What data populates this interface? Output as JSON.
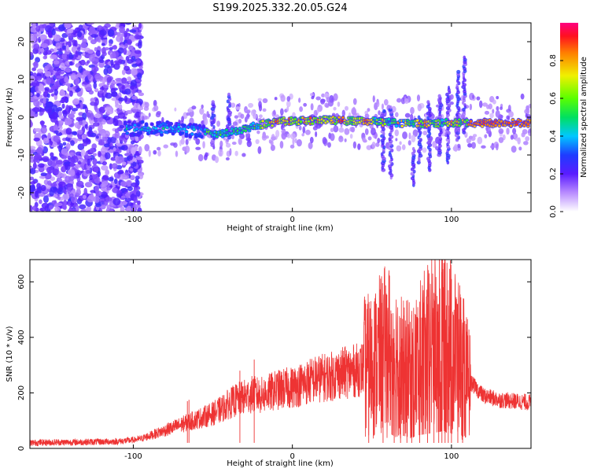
{
  "chart_data": [
    {
      "type": "heatmap",
      "title": "S199.2025.332.20.05.G24",
      "xlabel": "Height of straight line (km)",
      "ylabel": "Frequency (Hz)",
      "xlim": [
        -165,
        150
      ],
      "ylim": [
        -25,
        25
      ],
      "x_ticks": [
        -100,
        0,
        100
      ],
      "y_ticks": [
        -20,
        -10,
        0,
        10,
        20
      ],
      "colorbar": {
        "label": "Normalized spectral amplitude",
        "range": [
          0,
          1
        ],
        "ticks": [
          0.0,
          0.2,
          0.4,
          0.6,
          0.8
        ]
      },
      "ridge": {
        "x": [
          -105,
          -95,
          -85,
          -75,
          -65,
          -55,
          -45,
          -35,
          -25,
          -15,
          -5,
          5,
          15,
          25,
          35,
          45,
          55,
          65,
          75,
          85,
          95,
          105,
          115,
          125,
          135,
          150
        ],
        "y": [
          -3,
          -3,
          -3,
          -3,
          -3.5,
          -4,
          -4.5,
          -3.5,
          -2.5,
          -1.5,
          -1,
          -1,
          -0.8,
          -0.8,
          -1,
          -1,
          -1.2,
          -1.5,
          -1.5,
          -1.8,
          -1.5,
          -1.5,
          -1.5,
          -1.5,
          -1.5,
          -1.5
        ]
      }
    },
    {
      "type": "line",
      "xlabel": "Height of straight line (km)",
      "ylabel": "SNR (10 * v/v)",
      "xlim": [
        -165,
        150
      ],
      "ylim": [
        0,
        680
      ],
      "x_ticks": [
        -100,
        0,
        100
      ],
      "y_ticks": [
        0,
        200,
        400,
        600
      ],
      "series": [
        {
          "name": "SNR",
          "color": "#ee3333",
          "x": [
            -165,
            -150,
            -140,
            -130,
            -120,
            -110,
            -100,
            -95,
            -90,
            -85,
            -80,
            -75,
            -70,
            -65,
            -60,
            -55,
            -50,
            -45,
            -40,
            -35,
            -30,
            -25,
            -20,
            -15,
            -10,
            -5,
            0,
            5,
            10,
            15,
            20,
            25,
            30,
            35,
            40,
            45,
            50,
            55,
            60,
            65,
            70,
            75,
            80,
            85,
            90,
            95,
            100,
            105,
            110,
            115,
            120,
            130,
            140,
            150
          ],
          "y": [
            20,
            22,
            22,
            23,
            24,
            25,
            30,
            35,
            45,
            55,
            65,
            75,
            85,
            95,
            105,
            115,
            125,
            140,
            160,
            175,
            185,
            195,
            190,
            200,
            210,
            215,
            220,
            230,
            240,
            250,
            255,
            260,
            270,
            275,
            280,
            290,
            300,
            330,
            360,
            330,
            300,
            270,
            320,
            350,
            380,
            420,
            360,
            330,
            250,
            220,
            190,
            175,
            170,
            165
          ]
        }
      ],
      "bursts": [
        {
          "x": -33,
          "y": 280
        },
        {
          "x": -24,
          "y": 320
        },
        {
          "x": -66,
          "y": 170
        },
        {
          "x": -65,
          "y": 175
        },
        {
          "x": 48,
          "y": 390
        },
        {
          "x": 57,
          "y": 410
        },
        {
          "x": 64,
          "y": 430
        },
        {
          "x": 68,
          "y": 470
        },
        {
          "x": 72,
          "y": 330
        },
        {
          "x": 75,
          "y": 495
        },
        {
          "x": 80,
          "y": 470
        },
        {
          "x": 85,
          "y": 520
        },
        {
          "x": 89,
          "y": 560
        },
        {
          "x": 92,
          "y": 520
        },
        {
          "x": 94,
          "y": 600
        },
        {
          "x": 96,
          "y": 670
        },
        {
          "x": 98,
          "y": 570
        },
        {
          "x": 100,
          "y": 610
        },
        {
          "x": 104,
          "y": 520
        },
        {
          "x": 107,
          "y": 440
        }
      ]
    }
  ]
}
